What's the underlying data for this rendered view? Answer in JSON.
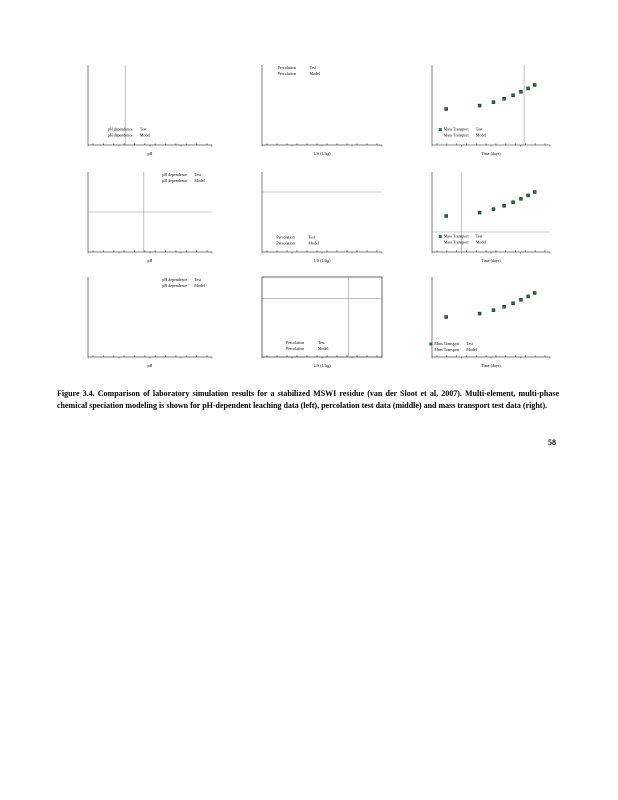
{
  "figure": {
    "panels": [
      {
        "legend": [
          {
            "name": "pH dependence",
            "kind": "Test"
          },
          {
            "name": "pH dependence",
            "kind": "Model"
          }
        ],
        "xlabel": "pH"
      },
      {
        "legend": [
          {
            "name": "Percolation",
            "kind": "Test"
          },
          {
            "name": "Percolation",
            "kind": "Model"
          }
        ],
        "xlabel": "L/S (L/kg)"
      },
      {
        "legend": [
          {
            "name": "Mass Transport",
            "kind": "Test"
          },
          {
            "name": "Mass Transport",
            "kind": "Model"
          }
        ],
        "xlabel": "Time (days)"
      },
      {
        "legend": [
          {
            "name": "pH dependence",
            "kind": "Test"
          },
          {
            "name": "pH dependence",
            "kind": "Model"
          }
        ],
        "xlabel": "pH"
      },
      {
        "legend": [
          {
            "name": "Percolation",
            "kind": "Test"
          },
          {
            "name": "Percolation",
            "kind": "Model"
          }
        ],
        "xlabel": "L/S (L/kg)"
      },
      {
        "legend": [
          {
            "name": "Mass Transport",
            "kind": "Test"
          },
          {
            "name": "Mass Transport",
            "kind": "Model"
          }
        ],
        "xlabel": "Time (days)"
      },
      {
        "legend": [
          {
            "name": "pH dependence",
            "kind": "Test"
          },
          {
            "name": "pH dependence",
            "kind": "Model"
          }
        ],
        "xlabel": "pH"
      },
      {
        "legend": [
          {
            "name": "Percolation",
            "kind": "Test"
          },
          {
            "name": "Percolation",
            "kind": "Model"
          }
        ],
        "xlabel": "L/S (L/kg)"
      },
      {
        "legend": [
          {
            "name": "Mass Transport",
            "kind": "Test"
          },
          {
            "name": "Mass Transport",
            "kind": "Model"
          }
        ],
        "xlabel": "Time (days)"
      }
    ],
    "caption": "Figure 3.4.  Comparison of laboratory simulation results for a stabilized MSWI residue (van der Sloot et al, 2007).  Multi-element, multi-phase chemical speciation modeling is shown for pH-dependent leaching data (left), percolation test data (middle) and mass transport test data (right)."
  },
  "page_number": "58"
}
